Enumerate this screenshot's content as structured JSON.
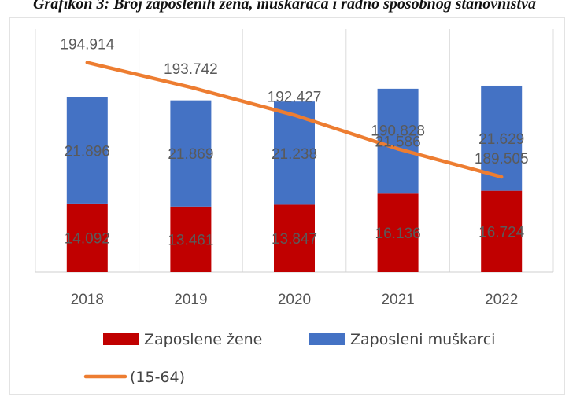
{
  "title": "Grafikon 3: Broj zaposlenih žena, muškaraca i radno sposobnog stanovništva",
  "chart_data": {
    "type": "bar",
    "stacked": true,
    "categories": [
      "2018",
      "2019",
      "2020",
      "2021",
      "2022"
    ],
    "series": [
      {
        "name": "Zaposlene žene",
        "type": "bar",
        "color": "#c00000",
        "values": [
          14.092,
          13.461,
          13.847,
          16.136,
          16.724
        ],
        "labels": [
          "14.092",
          "13.461",
          "13.847",
          "16.136",
          "16.724"
        ]
      },
      {
        "name": "Zaposleni muškarci",
        "type": "bar",
        "color": "#4472c4",
        "values": [
          21.896,
          21.869,
          21.238,
          21.586,
          21.629
        ],
        "labels": [
          "21.896",
          "21.869",
          "21.238",
          "21.586",
          "21.629"
        ]
      },
      {
        "name": "(15-64)",
        "type": "line",
        "color": "#ed7d31",
        "values": [
          194.914,
          193.742,
          192.427,
          190.828,
          189.505
        ],
        "labels": [
          "194.914",
          "193.742",
          "192.427",
          "190.828",
          "189.505"
        ]
      }
    ],
    "grid": "vertical",
    "legend": "bottom"
  }
}
